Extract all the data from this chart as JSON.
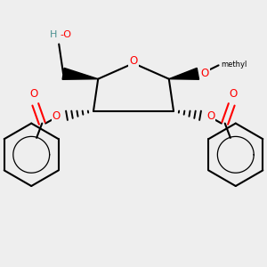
{
  "background_color": "#eeeeee",
  "atom_colors": {
    "O": "#ff0000",
    "C": "#000000",
    "H": "#4a9090"
  },
  "bond_color": "#000000",
  "bond_width": 1.5
}
